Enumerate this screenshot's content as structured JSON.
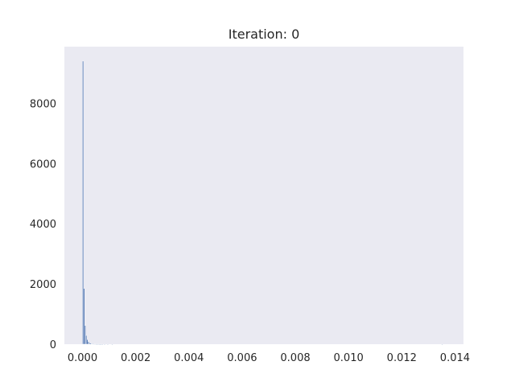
{
  "chart_data": {
    "type": "bar",
    "title": "Iteration: 0",
    "xlabel": "",
    "ylabel": "",
    "xlim": [
      -0.00068,
      0.01432
    ],
    "ylim": [
      0,
      9880
    ],
    "grid": false,
    "background_color": "#eaeaf2",
    "bar_color": "#4c72b0",
    "x_ticks": [
      0.0,
      0.002,
      0.004,
      0.006,
      0.008,
      0.01,
      0.012,
      0.014
    ],
    "x_tick_labels": [
      "0.000",
      "0.002",
      "0.004",
      "0.006",
      "0.008",
      "0.010",
      "0.012",
      "0.014"
    ],
    "y_ticks": [
      0,
      2000,
      4000,
      6000,
      8000
    ],
    "y_tick_labels": [
      "0",
      "2000",
      "4000",
      "6000",
      "8000"
    ],
    "bin_width": 4.06e-05,
    "bins": [
      {
        "x": 0.0,
        "count": 9400
      },
      {
        "x": 4.06e-05,
        "count": 1850
      },
      {
        "x": 8.12e-05,
        "count": 620
      },
      {
        "x": 0.000122,
        "count": 290
      },
      {
        "x": 0.000162,
        "count": 150
      },
      {
        "x": 0.000203,
        "count": 85
      },
      {
        "x": 0.000244,
        "count": 50
      },
      {
        "x": 0.000284,
        "count": 30
      },
      {
        "x": 0.000325,
        "count": 20
      },
      {
        "x": 0.000365,
        "count": 14
      },
      {
        "x": 0.000406,
        "count": 9
      },
      {
        "x": 0.000447,
        "count": 6
      },
      {
        "x": 0.000487,
        "count": 4
      },
      {
        "x": 0.000528,
        "count": 3
      },
      {
        "x": 0.000568,
        "count": 2
      },
      {
        "x": 0.000609,
        "count": 2
      },
      {
        "x": 0.00065,
        "count": 1
      },
      {
        "x": 0.00069,
        "count": 1
      },
      {
        "x": 0.00073,
        "count": 1
      },
      {
        "x": 0.00081,
        "count": 1
      },
      {
        "x": 0.00093,
        "count": 1
      },
      {
        "x": 0.0011,
        "count": 1
      },
      {
        "x": 0.0135,
        "count": 1
      }
    ]
  }
}
